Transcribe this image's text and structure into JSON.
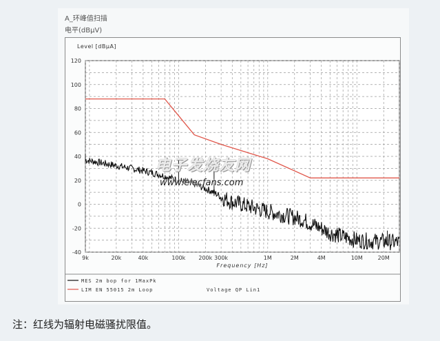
{
  "header": {
    "title": "A_环峰值扫描",
    "subtitle": "电平(dBμV)"
  },
  "caption": "注：红线为辐射电磁骚扰限值。",
  "watermark": {
    "cn": "电子发烧友网",
    "en": "www.elecfans.com"
  },
  "chart_data": {
    "type": "line",
    "ylabel": "Level [dBµA]",
    "xlabel": "Frequency [Hz]",
    "x_scale": "log",
    "xlim": [
      9000,
      30000000
    ],
    "ylim": [
      -40,
      120
    ],
    "y_ticks": [
      120,
      100,
      80,
      60,
      40,
      20,
      0,
      -20,
      -40
    ],
    "x_ticks": [
      {
        "value": 9000,
        "label": "9k"
      },
      {
        "value": 20000,
        "label": "20k"
      },
      {
        "value": 40000,
        "label": "40k"
      },
      {
        "value": 100000,
        "label": "100k"
      },
      {
        "value": 200000,
        "label": "200k"
      },
      {
        "value": 300000,
        "label": "300k"
      },
      {
        "value": 1000000,
        "label": "1M"
      },
      {
        "value": 2000000,
        "label": "2M"
      },
      {
        "value": 4000000,
        "label": "4M"
      },
      {
        "value": 10000000,
        "label": "10M"
      },
      {
        "value": 20000000,
        "label": "20M"
      }
    ],
    "grid": true,
    "legend_position": "bottom",
    "series": [
      {
        "name": "MES 2m bop for 1MaxPk",
        "color": "#111111",
        "x": [
          9000,
          15000,
          25000,
          40000,
          60000,
          100000,
          150000,
          200000,
          250000,
          300000,
          400000,
          500000,
          700000,
          1000000,
          1500000,
          2000000,
          2500000,
          3000000,
          4000000,
          5000000,
          7000000,
          10000000,
          15000000,
          20000000,
          30000000
        ],
        "y": [
          37,
          34,
          31,
          28,
          25,
          20,
          17,
          13,
          10,
          6,
          2,
          0,
          -3,
          -6,
          -9,
          -11,
          -13,
          -16,
          -20,
          -24,
          -27,
          -30,
          -31,
          -31,
          -32
        ]
      },
      {
        "name": "LIM EN 55015 2m Loop",
        "color": "#e0564a",
        "x": [
          9000,
          70000,
          150000,
          300000,
          1000000,
          3000000,
          30000000
        ],
        "y": [
          88,
          88,
          58,
          50,
          38,
          22,
          22
        ]
      }
    ],
    "legend_extra": "Voltage QP Lin1"
  }
}
